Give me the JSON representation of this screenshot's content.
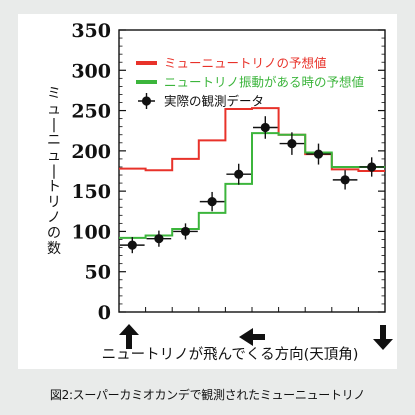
{
  "caption": "図2:スーパーカミオカンデで観測されたミューニュートリノ",
  "chart_data": {
    "type": "line",
    "ylabel": "ミューニュートリノの数",
    "xlabel": "ニュートリノが飛んでくる方向(天頂角)",
    "ylim": [
      0,
      350
    ],
    "yticks": [
      0,
      50,
      100,
      150,
      200,
      250,
      300,
      350
    ],
    "x_bins": 10,
    "direction_arrows": [
      "up",
      "left",
      "down"
    ],
    "legend_position": "top-left",
    "series": [
      {
        "name": "ミューニュートリノの予想値",
        "color": "#e8322a",
        "kind": "step",
        "values": [
          178,
          176,
          190,
          213,
          252,
          253,
          220,
          196,
          177,
          175
        ]
      },
      {
        "name": "ニュートリノ振動がある時の予想値",
        "color": "#3cb53c",
        "kind": "step",
        "values": [
          92,
          95,
          103,
          123,
          159,
          222,
          220,
          198,
          180,
          180
        ]
      },
      {
        "name": "実際の観測データ",
        "color": "#111111",
        "kind": "points",
        "values": [
          83,
          91,
          100,
          137,
          171,
          229,
          209,
          196,
          164,
          180
        ],
        "errors": [
          10,
          10,
          10,
          12,
          13,
          14,
          14,
          13,
          12,
          12
        ]
      }
    ]
  }
}
